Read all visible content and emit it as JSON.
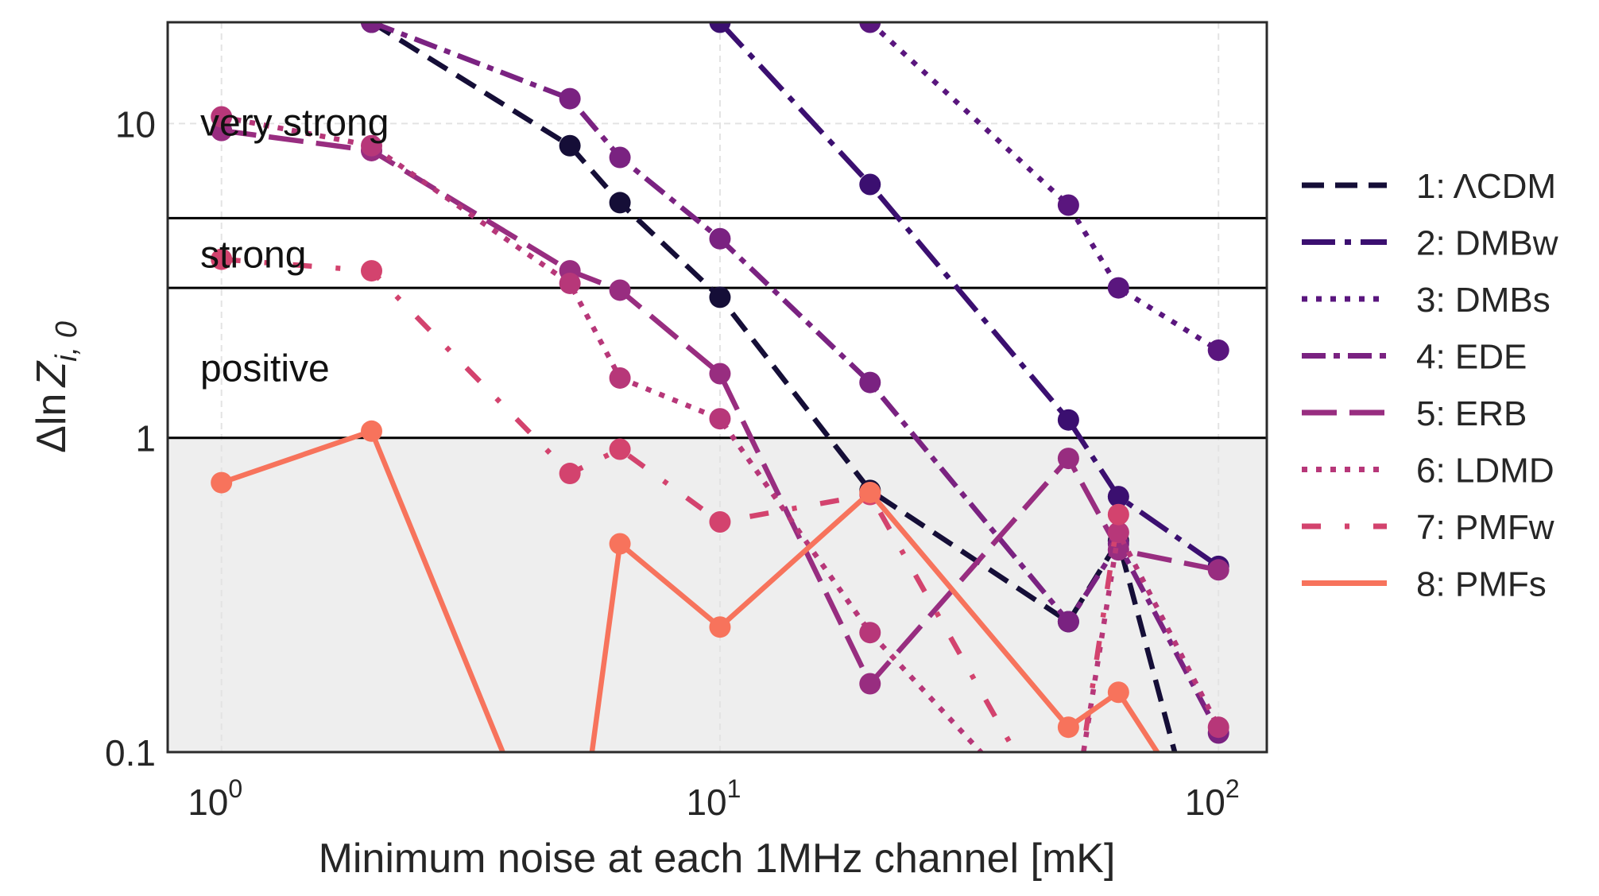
{
  "chart_data": {
    "type": "line",
    "xlabel": "Minimum noise at each 1MHz channel [mK]",
    "ylabel_main": "Δln",
    "ylabel_var": "Z",
    "ylabel_sub": "i, 0",
    "xscale": "log",
    "yscale": "log",
    "xlim": [
      0.78,
      125
    ],
    "ylim": [
      0.1,
      21
    ],
    "xticks": [
      1,
      10,
      100
    ],
    "xtick_base": [
      "10",
      "10",
      "10"
    ],
    "xtick_exp": [
      "0",
      "1",
      "2"
    ],
    "yticks": [
      0.1,
      1,
      10
    ],
    "ytick_labels": [
      "0.1",
      "1",
      "10"
    ],
    "grid": true,
    "legend_position": "outside-right",
    "shaded_region": {
      "y_from": 0.1,
      "y_to": 1,
      "color": "#eeeeee"
    },
    "thresholds": [
      1,
      3,
      5
    ],
    "region_labels": [
      {
        "text": "very strong",
        "y": 10
      },
      {
        "text": "strong",
        "y": 3.8
      },
      {
        "text": "positive",
        "y": 1.65
      }
    ],
    "x": [
      1,
      2,
      5,
      6.3,
      10,
      20,
      50,
      63,
      100
    ],
    "series": [
      {
        "name": "1: ΛCDM",
        "color": "#150e37",
        "dash": "dash",
        "values": [
          null,
          21,
          8.5,
          5.6,
          2.8,
          0.68,
          0.26,
          0.47,
          0.03
        ]
      },
      {
        "name": "2: DMBw",
        "color": "#3b0f70",
        "dash": "dashdot-long",
        "values": [
          null,
          null,
          null,
          null,
          21,
          6.4,
          1.14,
          0.65,
          0.39
        ]
      },
      {
        "name": "3: DMBs",
        "color": "#5a167e",
        "dash": "dot",
        "values": [
          null,
          null,
          null,
          null,
          null,
          21,
          5.5,
          3.0,
          1.9
        ]
      },
      {
        "name": "4: EDE",
        "color": "#7a2281",
        "dash": "dashdot",
        "values": [
          null,
          21,
          12,
          7.8,
          4.3,
          1.5,
          0.26,
          0.46,
          0.115
        ]
      },
      {
        "name": "5: ERB",
        "color": "#982d80",
        "dash": "longdash",
        "values": [
          9.5,
          8.2,
          3.4,
          2.95,
          1.6,
          0.165,
          0.86,
          0.44,
          0.38
        ]
      },
      {
        "name": "6: LDMD",
        "color": "#b73779",
        "dash": "dot",
        "values": [
          10.5,
          8.5,
          3.1,
          1.55,
          1.15,
          0.24,
          0.05,
          0.5,
          0.12
        ]
      },
      {
        "name": "7: PMFw",
        "color": "#d3436e",
        "dash": "dashdotsparse",
        "values": [
          3.7,
          3.4,
          0.77,
          0.92,
          0.54,
          0.66,
          0.05,
          0.57,
          null
        ]
      },
      {
        "name": "8: PMFs",
        "color": "#f7735c",
        "dash": "solid",
        "values": [
          0.72,
          1.05,
          0.03,
          0.46,
          0.25,
          0.67,
          0.12,
          0.155,
          0.05
        ]
      }
    ]
  }
}
